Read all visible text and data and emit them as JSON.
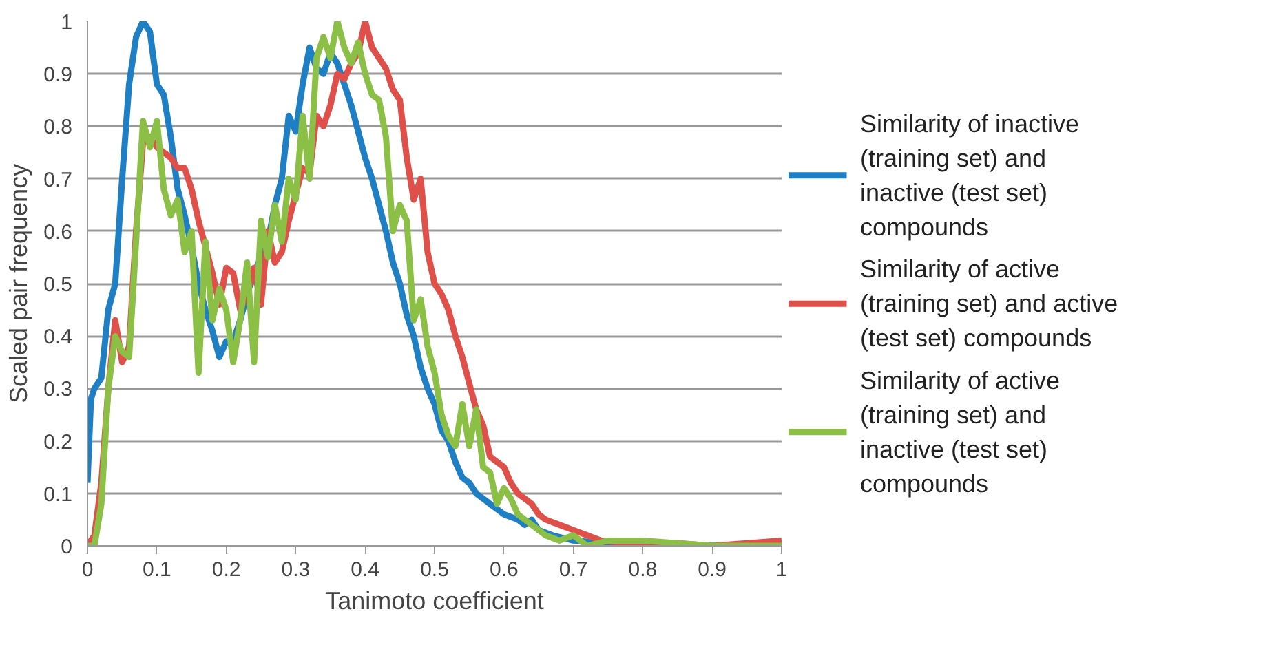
{
  "chart_data": {
    "type": "line",
    "xlabel": "Tanimoto coefficient",
    "ylabel": "Scaled pair frequency",
    "xlim": [
      0,
      1
    ],
    "ylim": [
      0,
      1
    ],
    "xticks": [
      0,
      0.1,
      0.2,
      0.3,
      0.4,
      0.5,
      0.6,
      0.7,
      0.8,
      0.9,
      1
    ],
    "yticks": [
      0,
      0.1,
      0.2,
      0.3,
      0.4,
      0.5,
      0.6,
      0.7,
      0.8,
      0.9,
      1
    ],
    "grid": "y",
    "legend": "right",
    "marker": "none",
    "line_style": "solid",
    "series": [
      {
        "name": "Similarity of inactive (training set) and inactive (test set) compounds",
        "color": "#1f7fc4",
        "x": [
          0,
          0.005,
          0.01,
          0.02,
          0.03,
          0.04,
          0.05,
          0.06,
          0.07,
          0.08,
          0.09,
          0.1,
          0.11,
          0.12,
          0.13,
          0.14,
          0.15,
          0.16,
          0.17,
          0.18,
          0.19,
          0.2,
          0.21,
          0.22,
          0.23,
          0.24,
          0.25,
          0.26,
          0.27,
          0.28,
          0.29,
          0.3,
          0.31,
          0.32,
          0.33,
          0.34,
          0.35,
          0.36,
          0.37,
          0.38,
          0.39,
          0.4,
          0.41,
          0.42,
          0.43,
          0.44,
          0.45,
          0.46,
          0.47,
          0.48,
          0.49,
          0.5,
          0.51,
          0.52,
          0.53,
          0.54,
          0.55,
          0.56,
          0.57,
          0.58,
          0.59,
          0.6,
          0.62,
          0.63,
          0.64,
          0.65,
          0.67,
          0.7,
          0.75,
          0.8,
          1.0
        ],
        "values": [
          0.12,
          0.28,
          0.3,
          0.32,
          0.45,
          0.5,
          0.7,
          0.88,
          0.97,
          1.0,
          0.98,
          0.88,
          0.86,
          0.78,
          0.68,
          0.63,
          0.57,
          0.5,
          0.45,
          0.41,
          0.36,
          0.39,
          0.39,
          0.43,
          0.48,
          0.52,
          0.55,
          0.58,
          0.65,
          0.7,
          0.82,
          0.79,
          0.88,
          0.95,
          0.91,
          0.9,
          0.94,
          0.92,
          0.88,
          0.84,
          0.79,
          0.74,
          0.7,
          0.65,
          0.6,
          0.54,
          0.5,
          0.44,
          0.4,
          0.34,
          0.3,
          0.27,
          0.22,
          0.2,
          0.16,
          0.13,
          0.12,
          0.1,
          0.09,
          0.08,
          0.07,
          0.06,
          0.05,
          0.04,
          0.05,
          0.03,
          0.02,
          0.01,
          0.005,
          0,
          0
        ]
      },
      {
        "name": "Similarity of active (training set) and active (test set) compounds",
        "color": "#e0504a",
        "x": [
          0,
          0.01,
          0.02,
          0.03,
          0.04,
          0.05,
          0.06,
          0.07,
          0.08,
          0.09,
          0.1,
          0.11,
          0.12,
          0.13,
          0.14,
          0.15,
          0.16,
          0.17,
          0.18,
          0.19,
          0.2,
          0.21,
          0.22,
          0.23,
          0.24,
          0.25,
          0.26,
          0.27,
          0.28,
          0.29,
          0.3,
          0.31,
          0.32,
          0.33,
          0.34,
          0.35,
          0.36,
          0.37,
          0.38,
          0.39,
          0.4,
          0.41,
          0.42,
          0.43,
          0.44,
          0.45,
          0.46,
          0.47,
          0.48,
          0.49,
          0.5,
          0.51,
          0.52,
          0.53,
          0.54,
          0.55,
          0.56,
          0.57,
          0.58,
          0.59,
          0.6,
          0.61,
          0.62,
          0.63,
          0.64,
          0.65,
          0.66,
          0.68,
          0.7,
          0.72,
          0.74,
          0.78,
          0.85,
          0.9,
          1.0
        ],
        "values": [
          0,
          0.02,
          0.12,
          0.3,
          0.43,
          0.35,
          0.38,
          0.6,
          0.77,
          0.78,
          0.76,
          0.75,
          0.74,
          0.72,
          0.72,
          0.68,
          0.62,
          0.57,
          0.52,
          0.46,
          0.53,
          0.52,
          0.45,
          0.48,
          0.53,
          0.46,
          0.6,
          0.54,
          0.56,
          0.62,
          0.67,
          0.72,
          0.71,
          0.82,
          0.8,
          0.84,
          0.9,
          0.89,
          0.92,
          0.94,
          1.0,
          0.95,
          0.93,
          0.91,
          0.87,
          0.85,
          0.74,
          0.66,
          0.7,
          0.56,
          0.5,
          0.48,
          0.45,
          0.4,
          0.36,
          0.31,
          0.26,
          0.23,
          0.17,
          0.16,
          0.15,
          0.12,
          0.1,
          0.09,
          0.08,
          0.06,
          0.05,
          0.04,
          0.03,
          0.02,
          0.01,
          0.005,
          0.005,
          0,
          0.01
        ]
      },
      {
        "name": "Similarity of active (training set) and inactive (test set) compounds",
        "color": "#8cbf45",
        "x": [
          0,
          0.01,
          0.02,
          0.03,
          0.04,
          0.05,
          0.06,
          0.07,
          0.08,
          0.09,
          0.1,
          0.11,
          0.12,
          0.13,
          0.14,
          0.15,
          0.16,
          0.17,
          0.18,
          0.19,
          0.2,
          0.21,
          0.22,
          0.23,
          0.24,
          0.25,
          0.26,
          0.27,
          0.28,
          0.29,
          0.3,
          0.31,
          0.32,
          0.33,
          0.34,
          0.35,
          0.36,
          0.37,
          0.38,
          0.39,
          0.4,
          0.41,
          0.42,
          0.43,
          0.44,
          0.45,
          0.46,
          0.47,
          0.48,
          0.49,
          0.5,
          0.51,
          0.52,
          0.53,
          0.54,
          0.55,
          0.56,
          0.57,
          0.58,
          0.59,
          0.6,
          0.61,
          0.62,
          0.64,
          0.66,
          0.68,
          0.7,
          0.72,
          0.75,
          0.8,
          0.85,
          0.9,
          1.0
        ],
        "values": [
          0,
          0,
          0.08,
          0.3,
          0.4,
          0.37,
          0.36,
          0.58,
          0.81,
          0.76,
          0.81,
          0.68,
          0.63,
          0.66,
          0.56,
          0.6,
          0.33,
          0.58,
          0.43,
          0.49,
          0.45,
          0.35,
          0.43,
          0.54,
          0.35,
          0.62,
          0.55,
          0.65,
          0.58,
          0.7,
          0.66,
          0.82,
          0.7,
          0.93,
          0.97,
          0.93,
          1.0,
          0.95,
          0.92,
          0.96,
          0.9,
          0.86,
          0.85,
          0.78,
          0.6,
          0.65,
          0.62,
          0.43,
          0.47,
          0.38,
          0.33,
          0.25,
          0.21,
          0.19,
          0.27,
          0.19,
          0.26,
          0.15,
          0.14,
          0.08,
          0.11,
          0.09,
          0.06,
          0.04,
          0.02,
          0.01,
          0.02,
          0,
          0.01,
          0.01,
          0.005,
          0,
          0
        ]
      }
    ]
  }
}
